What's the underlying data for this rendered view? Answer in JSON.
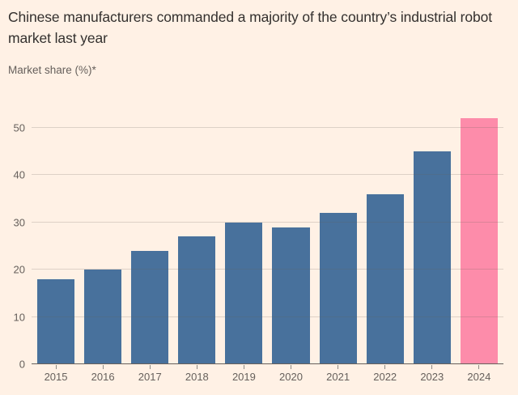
{
  "header": {
    "title": "Chinese manufacturers commanded a majority of the country’s industrial robot market last year",
    "subtitle": "Market share (%)*"
  },
  "colors": {
    "background": "#FFF1E5",
    "title_text": "#33302E",
    "label_text": "#66605C",
    "gridline": "#D9CEC3",
    "axis_line": "#66605C",
    "bar": "#48719C",
    "highlight": "#FD8CAA"
  },
  "chart_data": {
    "type": "bar",
    "title": "Chinese manufacturers commanded a majority of the country’s industrial robot market last year",
    "subtitle": "Market share (%)*",
    "xlabel": "",
    "ylabel": "Market share (%)*",
    "categories": [
      "2015",
      "2016",
      "2017",
      "2018",
      "2019",
      "2020",
      "2021",
      "2022",
      "2023",
      "2024"
    ],
    "values": [
      18,
      20,
      24,
      27,
      30,
      29,
      32,
      36,
      45,
      52
    ],
    "highlight_category": "2024",
    "yticks": [
      0,
      10,
      20,
      30,
      40,
      50
    ],
    "ylim": [
      0,
      54.6
    ],
    "grid": "horizontal",
    "legend": "none"
  }
}
